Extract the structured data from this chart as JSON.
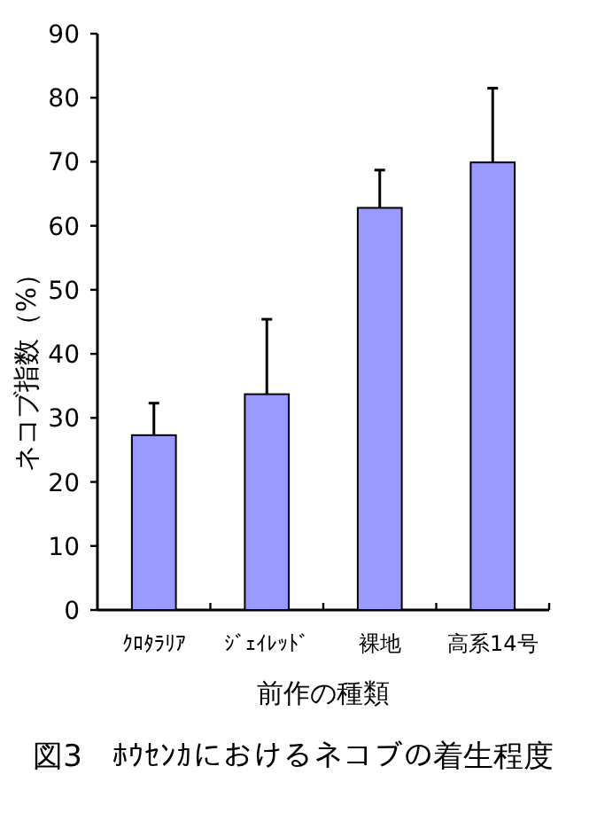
{
  "chart_data": {
    "type": "bar",
    "title": "図3　ﾎｳｾﾝｶにおけるネコブの着生程度",
    "xlabel": "前作の種類",
    "ylabel": "ネコブ指数（%）",
    "categories": [
      "ｸﾛﾀﾗﾘｱ",
      "ｼﾞｪｲﾚｯﾄﾞ",
      "裸地",
      "高系14号"
    ],
    "values": [
      27.3,
      33.7,
      62.8,
      69.9
    ],
    "errors": [
      [
        27.3,
        32.3
      ],
      [
        33.7,
        45.4
      ],
      [
        62.8,
        68.7
      ],
      [
        69.9,
        81.5
      ]
    ],
    "color": "#9999ff",
    "ylim": [
      0,
      90
    ],
    "yticks": [
      0,
      10,
      20,
      30,
      40,
      50,
      60,
      70,
      80,
      90
    ]
  }
}
